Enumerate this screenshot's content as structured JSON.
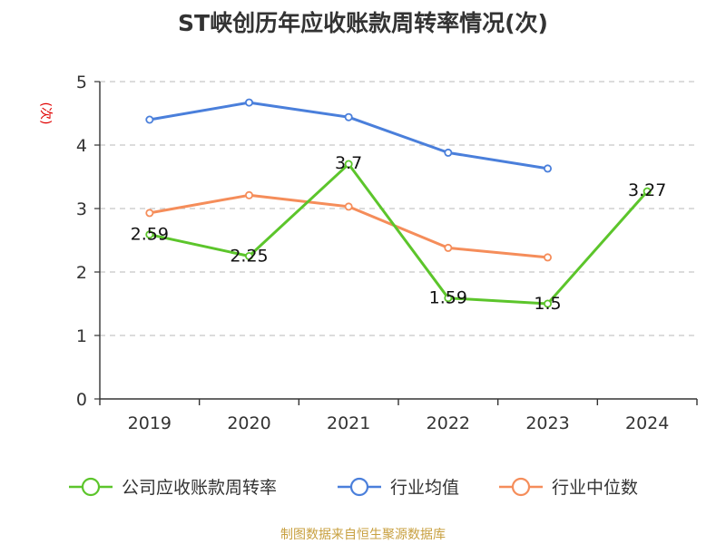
{
  "chart_data": {
    "type": "line",
    "title": "ST峡创历年应收账款周转率情况(次)",
    "ylabel": "(次)",
    "xlabel": "",
    "categories": [
      "2019",
      "2020",
      "2021",
      "2022",
      "2023",
      "2024"
    ],
    "ylim": [
      0,
      5
    ],
    "yticks": [
      0,
      1,
      2,
      3,
      4,
      5
    ],
    "grid": true,
    "legend_position": "bottom",
    "series": [
      {
        "name": "公司应收账款周转率",
        "values": [
          2.59,
          2.25,
          3.7,
          1.59,
          1.5,
          3.27
        ],
        "labels": [
          "2.59",
          "2.25",
          "3.7",
          "1.59",
          "1.5",
          "3.27"
        ],
        "color": "#5cc52b"
      },
      {
        "name": "行业均值",
        "values": [
          4.4,
          4.67,
          4.44,
          3.88,
          3.63,
          null
        ],
        "color": "#4a7fdb"
      },
      {
        "name": "行业中位数",
        "values": [
          2.93,
          3.21,
          3.03,
          2.38,
          2.23,
          null
        ],
        "color": "#f58d5a"
      }
    ],
    "source": "制图数据来自恒生聚源数据库"
  }
}
